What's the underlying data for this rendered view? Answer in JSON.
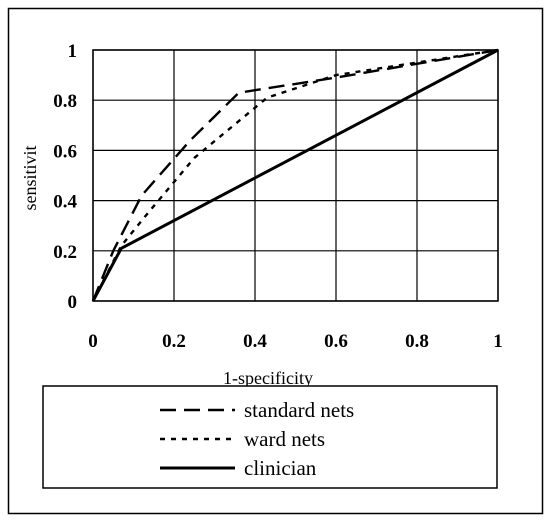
{
  "chart_data": {
    "type": "line",
    "title": "",
    "xlabel": "1-specificity",
    "ylabel": "sensitivit",
    "xlim": [
      0,
      1
    ],
    "ylim": [
      0,
      1
    ],
    "xticks": [
      0,
      0.2,
      0.4,
      0.6,
      0.8,
      1
    ],
    "yticks": [
      0,
      0.2,
      0.4,
      0.6,
      0.8,
      1
    ],
    "xtick_labels": [
      "0",
      "0.2",
      "0.4",
      "0.6",
      "0.8",
      "1"
    ],
    "ytick_labels": [
      "0",
      "0.2",
      "0.4",
      "0.6",
      "0.8",
      "1"
    ],
    "grid": true,
    "legend_position": "bottom",
    "series": [
      {
        "name": "standard nets",
        "line_style": "dashed",
        "color": "#000000",
        "x": [
          0,
          0.05,
          0.12,
          0.24,
          0.36,
          0.6,
          1
        ],
        "y": [
          0,
          0.2,
          0.42,
          0.64,
          0.83,
          0.89,
          1
        ]
      },
      {
        "name": "ward nets",
        "line_style": "dotted",
        "color": "#000000",
        "x": [
          0,
          0.07,
          0.13,
          0.25,
          0.43,
          0.6,
          1
        ],
        "y": [
          0,
          0.22,
          0.34,
          0.57,
          0.81,
          0.9,
          1
        ]
      },
      {
        "name": "clinician",
        "line_style": "solid",
        "color": "#000000",
        "x": [
          0,
          0.07,
          1
        ],
        "y": [
          0,
          0.21,
          1
        ]
      }
    ]
  }
}
